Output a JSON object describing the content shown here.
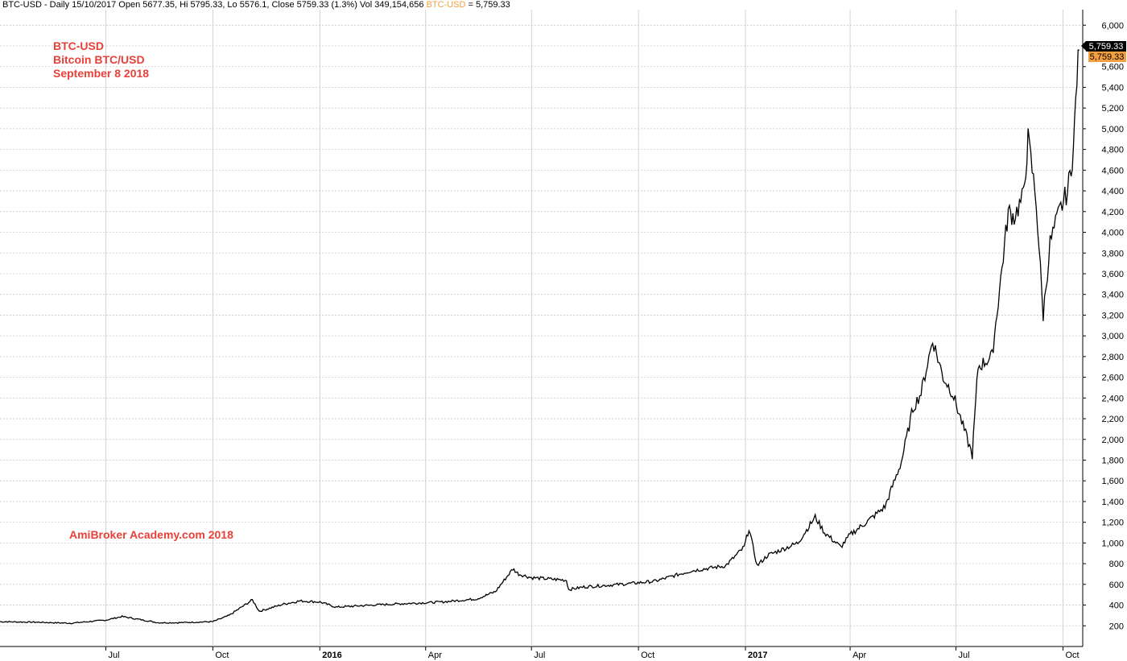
{
  "header": {
    "prefix": "BTC-USD - Daily 15/10/2017 Open 5677.35, Hi 5795.33, Lo 5576.1, Close 5759.33 (1.3%) Vol 349,154,656",
    "ticker": "BTC-USD",
    "equals": "= 5,759.33"
  },
  "annotations": {
    "line1": "BTC-USD",
    "line2": "Bitcoin BTC/USD",
    "line3": "September 8 2018",
    "watermark": "AmiBroker Academy.com  2018"
  },
  "price_labels": {
    "black": "5,759.33",
    "orange": "5,759.33"
  },
  "colors": {
    "price_line": "#000000",
    "grid": "#c8c8c8",
    "annotation": "#e8413a",
    "label_orange": "#f5a040"
  },
  "chart_data": {
    "type": "line",
    "title": "BTC-USD",
    "x_ticks": [
      {
        "date": "2015-07-01",
        "label": "Jul"
      },
      {
        "date": "2015-10-01",
        "label": "Oct"
      },
      {
        "date": "2016-01-01",
        "label": "2016"
      },
      {
        "date": "2016-04-01",
        "label": "Apr"
      },
      {
        "date": "2016-07-01",
        "label": "Jul"
      },
      {
        "date": "2016-10-01",
        "label": "Oct"
      },
      {
        "date": "2017-01-01",
        "label": "2017"
      },
      {
        "date": "2017-04-01",
        "label": "Apr"
      },
      {
        "date": "2017-07-01",
        "label": "Jul"
      },
      {
        "date": "2017-10-01",
        "label": "Oct"
      }
    ],
    "y_ticks": [
      200,
      400,
      600,
      800,
      1000,
      1200,
      1400,
      1600,
      1800,
      2000,
      2200,
      2400,
      2600,
      2800,
      3000,
      3200,
      3400,
      3600,
      3800,
      4000,
      4200,
      4400,
      4600,
      4800,
      5000,
      5200,
      5400,
      5600,
      5800,
      6000
    ],
    "y_tick_labels": [
      "200",
      "400",
      "600",
      "800",
      "1,000",
      "1,200",
      "1,400",
      "1,600",
      "1,800",
      "2,000",
      "2,200",
      "2,400",
      "2,600",
      "2,800",
      "3,000",
      "3,200",
      "3,400",
      "3,600",
      "3,800",
      "4,000",
      "4,200",
      "4,400",
      "4,600",
      "4,800",
      "5,000",
      "5,200",
      "5,400",
      "5,600",
      "5,800",
      "6,000"
    ],
    "ylim": [
      0,
      6150
    ],
    "xlim": [
      "2015-04-01",
      "2017-10-18"
    ],
    "grid": true,
    "series": [
      {
        "x": [
          "2015-04-01",
          "2015-05-01",
          "2015-06-01",
          "2015-07-01",
          "2015-07-15",
          "2015-08-15",
          "2015-09-01",
          "2015-10-01",
          "2015-10-15",
          "2015-11-04",
          "2015-11-10",
          "2015-12-01",
          "2015-12-15",
          "2016-01-01",
          "2016-01-15",
          "2016-02-15",
          "2016-03-15",
          "2016-04-15",
          "2016-05-15",
          "2016-05-31",
          "2016-06-15",
          "2016-06-20",
          "2016-07-01",
          "2016-07-31",
          "2016-08-02",
          "2016-08-15",
          "2016-09-15",
          "2016-10-15",
          "2016-11-15",
          "2016-12-15",
          "2016-12-31",
          "2017-01-04",
          "2017-01-11",
          "2017-01-20",
          "2017-02-15",
          "2017-03-02",
          "2017-03-10",
          "2017-03-24",
          "2017-04-01",
          "2017-04-15",
          "2017-05-01",
          "2017-05-15",
          "2017-05-25",
          "2017-06-01",
          "2017-06-11",
          "2017-06-20",
          "2017-06-28",
          "2017-07-15",
          "2017-07-20",
          "2017-08-01",
          "2017-08-15",
          "2017-08-20",
          "2017-08-28",
          "2017-09-01",
          "2017-09-08",
          "2017-09-14",
          "2017-09-20",
          "2017-09-28",
          "2017-10-05",
          "2017-10-10",
          "2017-10-13",
          "2017-10-15"
        ],
        "values": [
          240,
          235,
          225,
          255,
          290,
          230,
          230,
          240,
          300,
          450,
          340,
          410,
          440,
          430,
          380,
          400,
          415,
          430,
          460,
          530,
          750,
          700,
          665,
          640,
          550,
          575,
          600,
          630,
          730,
          780,
          960,
          1140,
          780,
          880,
          1000,
          1250,
          1100,
          960,
          1080,
          1200,
          1350,
          1780,
          2300,
          2450,
          2960,
          2600,
          2450,
          1850,
          2700,
          2800,
          4200,
          4150,
          4350,
          4900,
          4300,
          3200,
          3900,
          4200,
          4400,
          4800,
          5500,
          5759.33
        ]
      }
    ]
  }
}
